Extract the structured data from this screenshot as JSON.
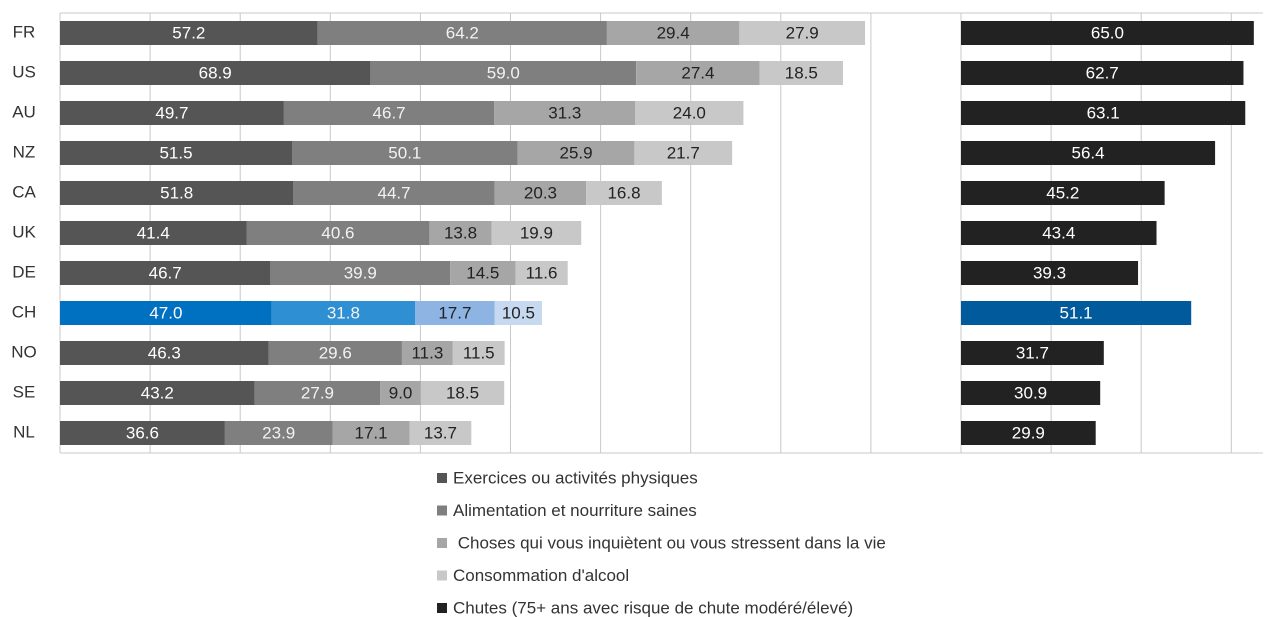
{
  "chart_data": {
    "type": "stacked-hbar",
    "categories": [
      "FR",
      "US",
      "AU",
      "NZ",
      "CA",
      "UK",
      "DE",
      "CH",
      "NO",
      "SE",
      "NL"
    ],
    "series": [
      {
        "name": "Exercices ou activités physiques",
        "color": "#555555",
        "highlight_color": "#0070c0",
        "label_color": "#ffffff",
        "values": [
          57.2,
          68.9,
          49.7,
          51.5,
          51.8,
          41.4,
          46.7,
          47.0,
          46.3,
          43.2,
          36.6
        ],
        "value_labels": [
          "57.2",
          "68.9",
          "49.7",
          "51.5",
          "51.8",
          "41.4",
          "46.7",
          "47.0",
          "46.3",
          "43.2",
          "36.6"
        ]
      },
      {
        "name": "Alimentation et nourriture saines",
        "color": "#7f7f7f",
        "highlight_color": "#2f8fd3",
        "label_color": "#f2f2f2",
        "values": [
          64.2,
          59.0,
          46.7,
          50.1,
          44.7,
          40.6,
          39.9,
          31.8,
          29.6,
          27.9,
          23.9
        ],
        "value_labels": [
          "64.2",
          "59.0",
          "46.7",
          "50.1",
          "44.7",
          "40.6",
          "39.9",
          "31.8",
          "29.6",
          "27.9",
          "23.9"
        ]
      },
      {
        "name": " Choses qui vous inquiètent ou vous stressent dans la vie",
        "color": "#a6a6a6",
        "highlight_color": "#8db4e2",
        "label_color": "#222222",
        "values": [
          29.4,
          27.4,
          31.3,
          25.9,
          20.3,
          13.8,
          14.5,
          17.7,
          11.3,
          9.0,
          17.1
        ],
        "value_labels": [
          "29.4",
          "27.4",
          "31.3",
          "25.9",
          "20.3",
          "13.8",
          "14.5",
          "17.7",
          "11.3",
          "9.0",
          "17.1"
        ]
      },
      {
        "name": "Consommation d'alcool",
        "color": "#c8c8c8",
        "highlight_color": "#c6d9f1",
        "label_color": "#222222",
        "values": [
          27.9,
          18.5,
          24.0,
          21.7,
          16.8,
          19.9,
          11.6,
          10.5,
          11.5,
          18.5,
          13.7
        ],
        "value_labels": [
          "27.9",
          "18.5",
          "24.0",
          "21.7",
          "16.8",
          "19.9",
          "11.6",
          "10.5",
          "11.5",
          "18.5",
          "13.7"
        ]
      },
      {
        "name": "Chutes (75+ ans avec risque de chute modéré/élevé)",
        "color": "#222222",
        "highlight_color": "#005a9c",
        "label_color": "#ffffff",
        "axis": "x2",
        "values": [
          65.0,
          62.7,
          63.1,
          56.4,
          45.2,
          43.4,
          39.3,
          51.1,
          31.7,
          30.9,
          29.9
        ],
        "value_labels": [
          "65.0",
          "62.7",
          "63.1",
          "56.4",
          "45.2",
          "43.4",
          "39.3",
          "51.1",
          "31.7",
          "30.9",
          "29.9"
        ]
      }
    ],
    "highlight_category": "CH",
    "xlim": [
      0,
      200
    ],
    "xticks": [
      0,
      20,
      40,
      60,
      80,
      100,
      120,
      140,
      160,
      180,
      200
    ],
    "x2lim": [
      0,
      67
    ],
    "x2ticks": [
      0,
      20,
      40,
      60
    ],
    "grid": true
  }
}
